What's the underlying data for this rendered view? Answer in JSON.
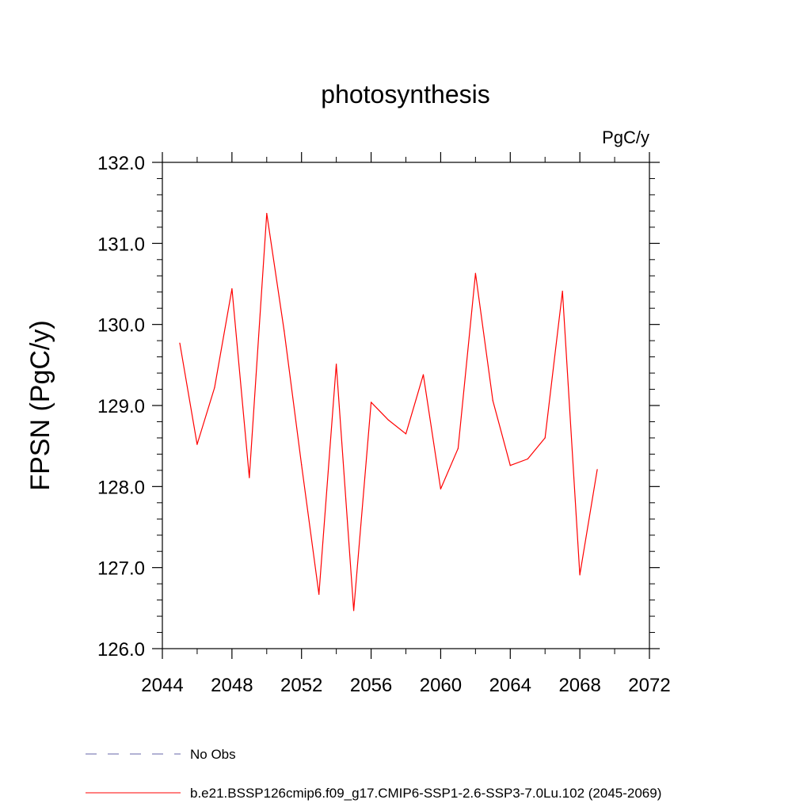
{
  "chart_data": {
    "type": "line",
    "title": "photosynthesis",
    "units": "PgC/y",
    "ylabel": "FPSN  (PgC/y)",
    "xlabel": "",
    "xlim": [
      2044,
      2072
    ],
    "ylim": [
      126.0,
      132.0
    ],
    "x_ticks": [
      "2044",
      "2048",
      "2052",
      "2056",
      "2060",
      "2064",
      "2068",
      "2072"
    ],
    "y_ticks": [
      "126.0",
      "127.0",
      "128.0",
      "129.0",
      "130.0",
      "131.0",
      "132.0"
    ],
    "series": [
      {
        "name": "b.e21.BSSP126cmip6.f09_g17.CMIP6-SSP1-2.6-SSP3-7.0Lu.102 (2045-2069)",
        "color": "#ff0000",
        "x": [
          2045,
          2046,
          2047,
          2048,
          2049,
          2050,
          2051,
          2052,
          2053,
          2054,
          2055,
          2056,
          2057,
          2058,
          2059,
          2060,
          2061,
          2062,
          2063,
          2064,
          2065,
          2066,
          2067,
          2068,
          2069
        ],
        "y": [
          129.77,
          128.52,
          129.22,
          130.44,
          128.11,
          131.37,
          129.92,
          128.27,
          126.67,
          129.51,
          126.47,
          129.04,
          128.82,
          128.65,
          129.38,
          127.97,
          128.47,
          130.63,
          129.06,
          128.26,
          128.34,
          128.6,
          130.41,
          126.91,
          128.21
        ]
      }
    ],
    "legend": [
      {
        "label": "No Obs",
        "color": "#6666aa",
        "dashed": true
      },
      {
        "label": "b.e21.BSSP126cmip6.f09_g17.CMIP6-SSP1-2.6-SSP3-7.0Lu.102 (2045-2069)",
        "color": "#ff0000",
        "dashed": false
      }
    ],
    "grid": false,
    "legend_position": "bottom"
  }
}
